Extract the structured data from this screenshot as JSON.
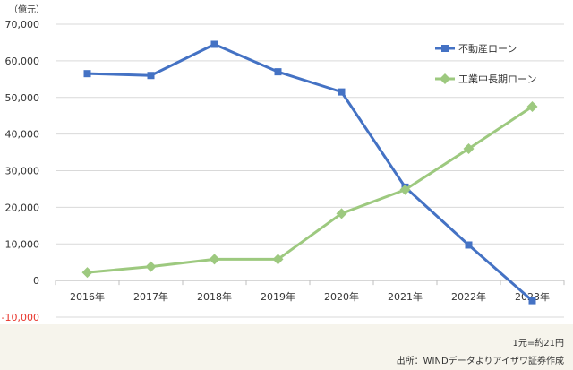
{
  "chart_data": {
    "type": "line",
    "unit_label": "（億元）",
    "categories": [
      "2016年",
      "2017年",
      "2018年",
      "2019年",
      "2020年",
      "2021年",
      "2022年",
      "2023年"
    ],
    "ylim": [
      -10000,
      70000
    ],
    "y_ticks": [
      -10000,
      0,
      10000,
      20000,
      30000,
      40000,
      50000,
      60000,
      70000
    ],
    "y_tick_labels": [
      "-10,000",
      "0",
      "10,000",
      "20,000",
      "30,000",
      "40,000",
      "50,000",
      "60,000",
      "70,000"
    ],
    "grid": true,
    "legend_position": "top-right",
    "series": [
      {
        "name": "不動産ローン",
        "color": "#4472c4",
        "marker": "square",
        "values": [
          56500,
          56000,
          64500,
          57000,
          51500,
          25500,
          9700,
          -5500
        ]
      },
      {
        "name": "工業中長期ローン",
        "color": "#9dc97f",
        "marker": "diamond",
        "values": [
          2200,
          3800,
          5800,
          5800,
          18300,
          24800,
          36000,
          47500
        ]
      }
    ],
    "negative_tick_color": "#e8332a"
  },
  "footer": {
    "rate": "1元=約21円",
    "source": "出所：WINDデータよりアイザワ証券作成"
  }
}
